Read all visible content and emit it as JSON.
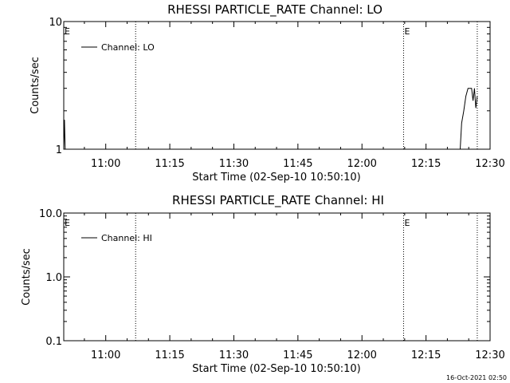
{
  "chart_data": [
    {
      "type": "line",
      "title": "RHESSI PARTICLE_RATE Channel: LO",
      "xlabel": "Start Time (02-Sep-10 10:50:10)",
      "ylabel": "Counts/sec",
      "y_scale": "log",
      "ylim": [
        1,
        10
      ],
      "xlim": [
        "10:50:10",
        "12:30:00"
      ],
      "y_ticks": [
        "1",
        "10"
      ],
      "x_ticks": [
        "11:00",
        "11:15",
        "11:30",
        "11:45",
        "12:00",
        "12:15",
        "12:30"
      ],
      "legend": {
        "entries": [
          "Channel: LO"
        ],
        "position": "top-left"
      },
      "eclipse_markers": [
        {
          "label": "E",
          "time": "10:50:10"
        },
        {
          "label": "E",
          "time": "12:09:45"
        }
      ],
      "vertical_lines": [
        "11:07:00",
        "12:09:45",
        "12:27:00"
      ],
      "series": [
        {
          "name": "Channel: LO",
          "segments": [
            [
              [
                "10:50:10",
                1.0
              ],
              [
                "10:50:20",
                1.7
              ],
              [
                "10:50:30",
                1.0
              ]
            ],
            [
              [
                "12:23:00",
                1.0
              ],
              [
                "12:23:20",
                1.6
              ],
              [
                "12:23:50",
                2.0
              ],
              [
                "12:24:20",
                2.6
              ],
              [
                "12:24:50",
                3.0
              ],
              [
                "12:25:40",
                3.0
              ],
              [
                "12:26:00",
                2.4
              ],
              [
                "12:26:20",
                3.0
              ],
              [
                "12:26:40",
                2.1
              ],
              [
                "12:27:00",
                2.6
              ]
            ]
          ]
        }
      ]
    },
    {
      "type": "line",
      "title": "RHESSI PARTICLE_RATE Channel: HI",
      "xlabel": "Start Time (02-Sep-10 10:50:10)",
      "ylabel": "Counts/sec",
      "y_scale": "log",
      "ylim": [
        0.1,
        10
      ],
      "xlim": [
        "10:50:10",
        "12:30:00"
      ],
      "y_ticks": [
        "0.1",
        "1.0",
        "10.0"
      ],
      "x_ticks": [
        "11:00",
        "11:15",
        "11:30",
        "11:45",
        "12:00",
        "12:15",
        "12:30"
      ],
      "legend": {
        "entries": [
          "Channel: HI"
        ],
        "position": "top-left"
      },
      "eclipse_markers": [
        {
          "label": "E",
          "time": "10:50:10"
        },
        {
          "label": "E",
          "time": "12:09:45"
        }
      ],
      "vertical_lines": [
        "11:07:00",
        "12:09:45",
        "12:27:00"
      ],
      "series": [
        {
          "name": "Channel: HI",
          "segments": []
        }
      ]
    }
  ],
  "timestamp": "16-Oct-2021 02:50"
}
